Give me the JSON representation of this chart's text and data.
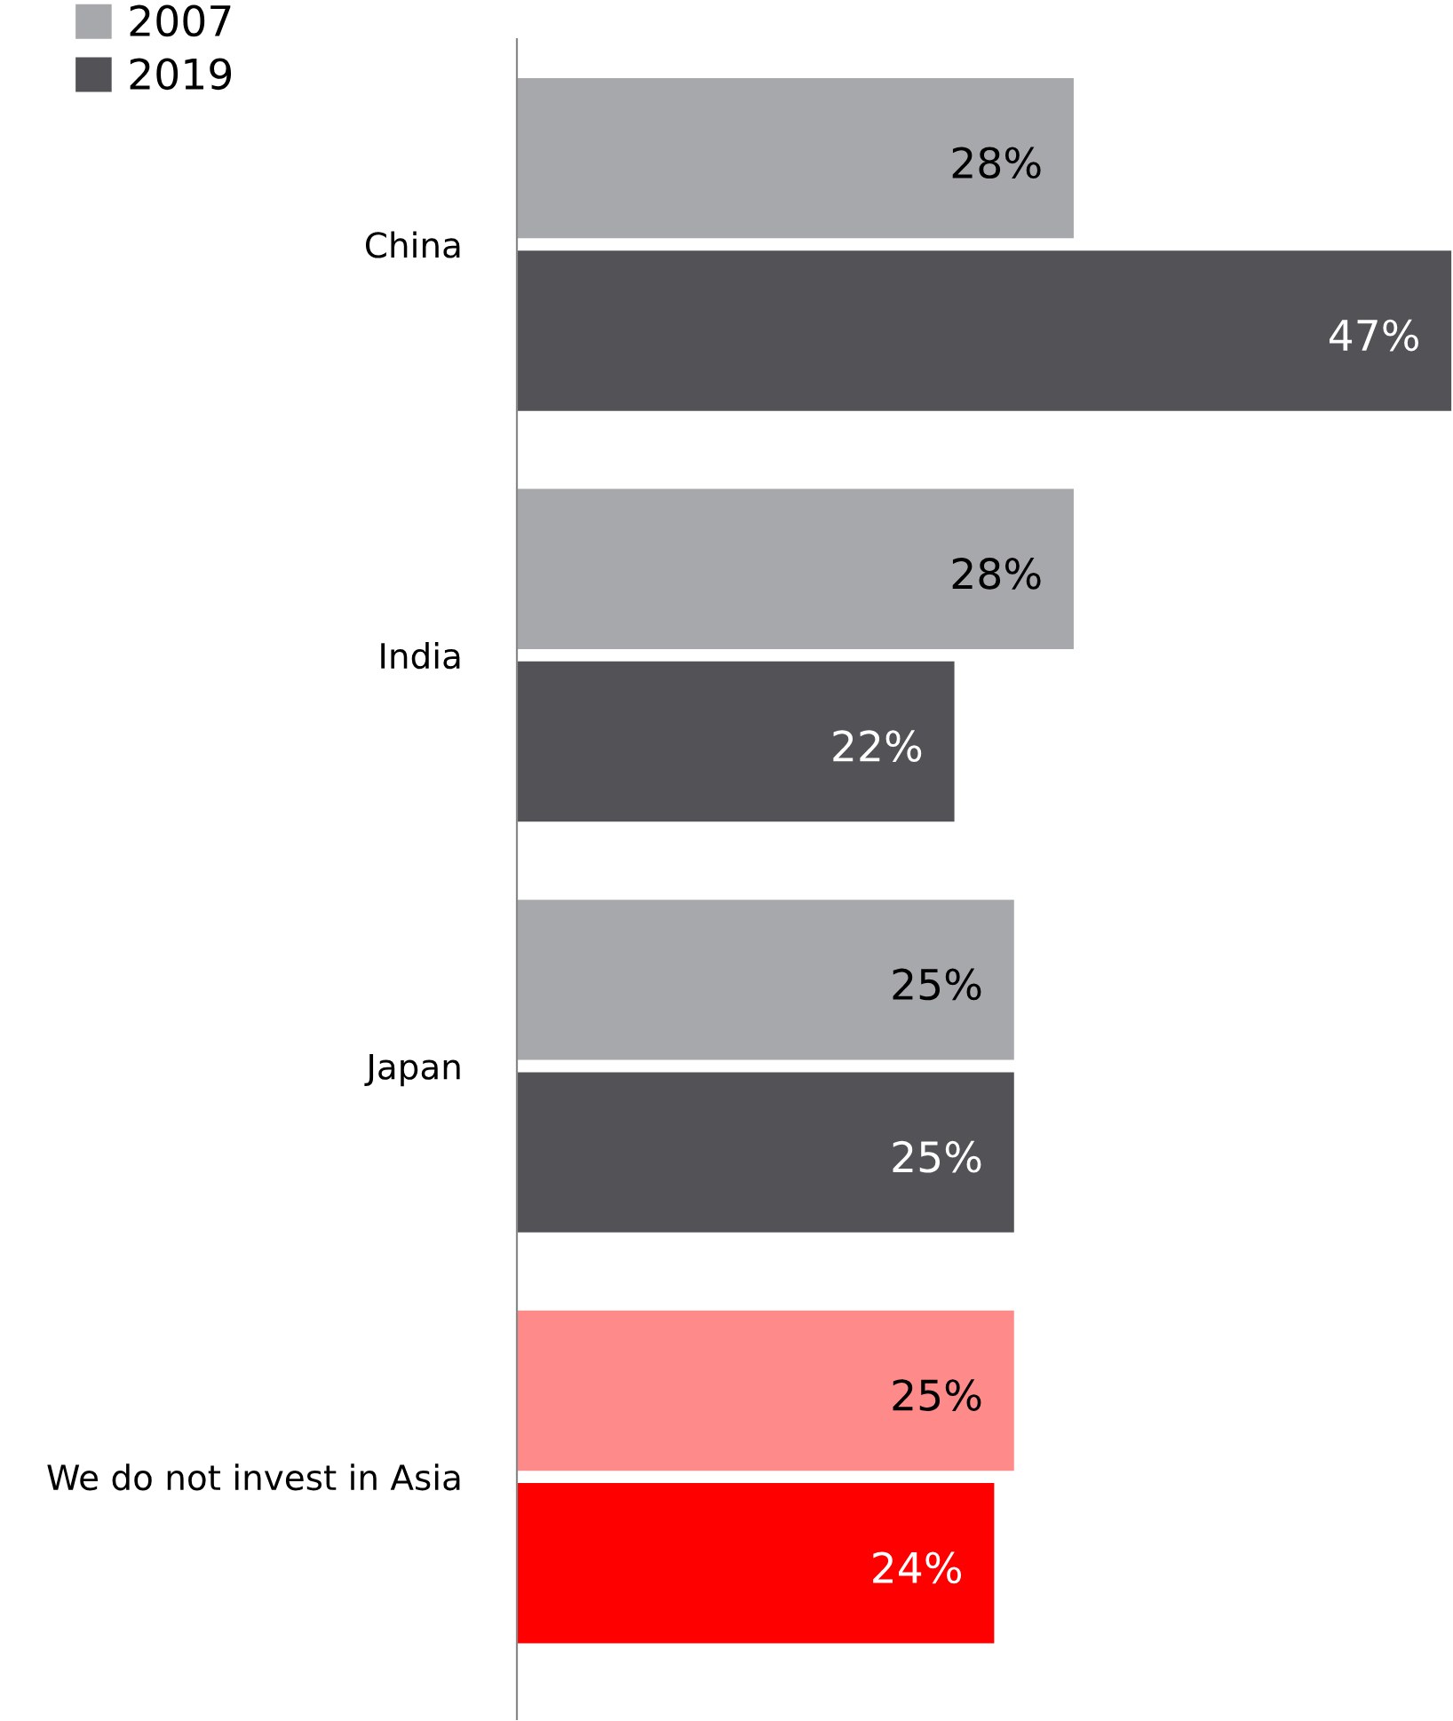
{
  "chart_data": {
    "type": "bar",
    "orientation": "horizontal",
    "categories": [
      "China",
      "India",
      "Japan",
      "We do not invest in Asia"
    ],
    "series": [
      {
        "name": "2007",
        "color": "#a7a8ab",
        "colors": [
          "#a7a8ab",
          "#a7a8ab",
          "#a7a8ab",
          "#ff8a8a"
        ],
        "values": [
          28,
          28,
          25,
          25
        ],
        "value_labels": [
          "28%",
          "28%",
          "25%",
          "25%"
        ]
      },
      {
        "name": "2019",
        "color": "#535357",
        "colors": [
          "#535357",
          "#535357",
          "#535357",
          "#ff0000"
        ],
        "values": [
          47,
          22,
          25,
          24
        ],
        "value_labels": [
          "47%",
          "22%",
          "25%",
          "24%"
        ]
      }
    ],
    "legend": "top left",
    "grid": false
  }
}
